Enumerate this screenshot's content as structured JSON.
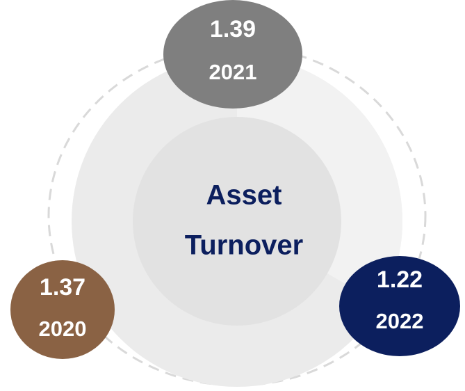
{
  "center": {
    "lines": [
      "Asset",
      "Turnover"
    ],
    "color": "#0c1f5e"
  },
  "nodes": [
    {
      "value": 1.39,
      "label": "2021",
      "color": "#7f7f7f"
    },
    {
      "value": 1.37,
      "label": "2020",
      "color": "#8a6244"
    },
    {
      "value": 1.22,
      "label": "2022",
      "color": "#0c1f5e"
    }
  ]
}
